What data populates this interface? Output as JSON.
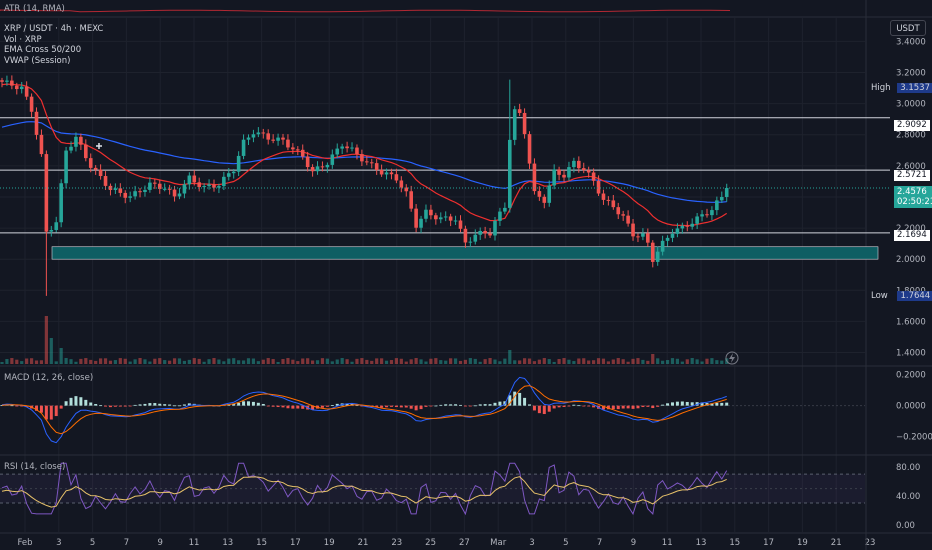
{
  "colors": {
    "bg": "#131722",
    "grid": "#1e222d",
    "separator": "#2a2e39",
    "up": "#26a69a",
    "down": "#ef5350",
    "ema50": "#ef2f2f",
    "ema200": "#2962ff",
    "vwap": "#26a69a",
    "zone": "#0e5e63",
    "hline": "#d1d4dc",
    "macd": "#2962ff",
    "signal": "#ff6d00",
    "rsi": "#7e57c2",
    "rsi_ma": "#e8c26a",
    "atr": "#b22833"
  },
  "header": {
    "atr_label": "ATR (14, RMA)",
    "symbol": "XRP / USDT · 4h · MEXC",
    "vol": "Vol · XRP",
    "ema": "EMA Cross 50/200",
    "vwap": "VWAP (Session)",
    "currency_button": "USDT",
    "macd_label": "MACD (12, 26, close)",
    "rsi_label": "RSI (14, close)"
  },
  "price_tags": {
    "high_label": "High",
    "high_value": "3.1537",
    "level_1": "2.9092",
    "level_2": "2.5721",
    "level_3": "2.1694",
    "current_price": "2.4576",
    "countdown": "02:50:21",
    "low_label": "Low",
    "low_value": "1.7644"
  },
  "chart_data": {
    "type": "candlestick",
    "symbol": "XRP / USDT",
    "interval": "4h",
    "exchange": "MEXC",
    "x_tick_labels": [
      "Feb",
      "3",
      "5",
      "7",
      "9",
      "11",
      "13",
      "15",
      "17",
      "19",
      "21",
      "23",
      "25",
      "27",
      "Mar",
      "3",
      "5",
      "7",
      "9",
      "11",
      "13",
      "15",
      "17",
      "19",
      "21",
      "23"
    ],
    "y_ticks": [
      1.4,
      1.6,
      1.8,
      2.0,
      2.2,
      2.4,
      2.6,
      2.8,
      3.0,
      3.2,
      3.4
    ],
    "ylim": [
      1.32,
      3.55
    ],
    "horizontal_levels": [
      2.9092,
      2.5721,
      2.1694
    ],
    "support_zone": [
      2.0,
      2.08
    ],
    "high": 3.1537,
    "low": 1.7644,
    "last": 2.4576,
    "close_path": [
      [
        0,
        3.14
      ],
      [
        4,
        3.1
      ],
      [
        6,
        2.96
      ],
      [
        8,
        2.66
      ],
      [
        9,
        2.17
      ],
      [
        11,
        2.24
      ],
      [
        13,
        2.7
      ],
      [
        15,
        2.78
      ],
      [
        18,
        2.6
      ],
      [
        22,
        2.45
      ],
      [
        26,
        2.4
      ],
      [
        30,
        2.48
      ],
      [
        33,
        2.46
      ],
      [
        35,
        2.4
      ],
      [
        38,
        2.52
      ],
      [
        41,
        2.46
      ],
      [
        44,
        2.48
      ],
      [
        47,
        2.58
      ],
      [
        49,
        2.75
      ],
      [
        51,
        2.82
      ],
      [
        54,
        2.78
      ],
      [
        57,
        2.76
      ],
      [
        59,
        2.71
      ],
      [
        61,
        2.66
      ],
      [
        63,
        2.56
      ],
      [
        66,
        2.62
      ],
      [
        69,
        2.74
      ],
      [
        71,
        2.7
      ],
      [
        74,
        2.62
      ],
      [
        77,
        2.56
      ],
      [
        80,
        2.52
      ],
      [
        82,
        2.42
      ],
      [
        84,
        2.22
      ],
      [
        86,
        2.3
      ],
      [
        89,
        2.26
      ],
      [
        92,
        2.26
      ],
      [
        94,
        2.1
      ],
      [
        96,
        2.16
      ],
      [
        99,
        2.17
      ],
      [
        100,
        2.24
      ],
      [
        102,
        2.34
      ],
      [
        103,
        2.78
      ],
      [
        104,
        2.95
      ],
      [
        105,
        2.93
      ],
      [
        106,
        2.82
      ],
      [
        108,
        2.42
      ],
      [
        110,
        2.38
      ],
      [
        112,
        2.56
      ],
      [
        114,
        2.54
      ],
      [
        116,
        2.62
      ],
      [
        118,
        2.58
      ],
      [
        120,
        2.5
      ],
      [
        122,
        2.38
      ],
      [
        124,
        2.34
      ],
      [
        126,
        2.27
      ],
      [
        128,
        2.16
      ],
      [
        130,
        2.15
      ],
      [
        131,
        2.1
      ],
      [
        132,
        2.0
      ],
      [
        134,
        2.1
      ],
      [
        136,
        2.18
      ],
      [
        138,
        2.2
      ],
      [
        140,
        2.24
      ],
      [
        142,
        2.28
      ],
      [
        144,
        2.32
      ],
      [
        146,
        2.4
      ],
      [
        147,
        2.4576
      ]
    ],
    "macd_ylim": [
      -0.3,
      0.25
    ],
    "macd_ticks": [
      0.2,
      0.0,
      -0.2
    ],
    "macd_tick_labels": [
      "0.2000",
      "0.0000",
      "−0.2000"
    ],
    "rsi_ylim": [
      -10,
      95
    ],
    "rsi_ticks": [
      80,
      40,
      0
    ],
    "rsi_tick_labels": [
      "80.00",
      "40.00",
      "0.00"
    ],
    "rsi_bands": [
      70,
      30
    ],
    "price_tick_labels": [
      "1.4000",
      "1.6000",
      "1.8000",
      "2.0000",
      "2.2000",
      "2.4000",
      "2.6000",
      "2.8000",
      "3.0000",
      "3.2000",
      "3.4000"
    ]
  }
}
